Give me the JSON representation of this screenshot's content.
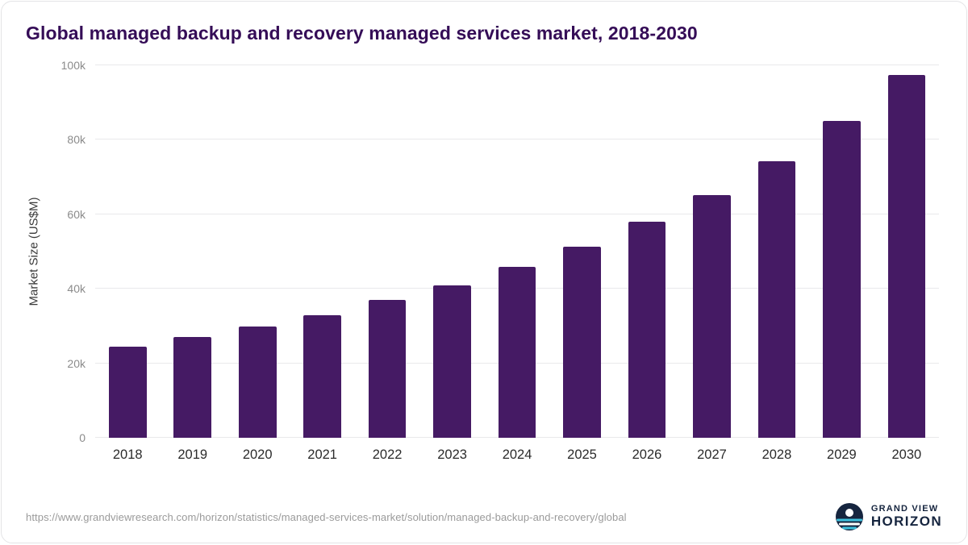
{
  "colors": {
    "bar": "#451a64",
    "title": "#350d57",
    "navy": "#16253f",
    "accent_teal": "#3fc0dc",
    "gridline": "#e9e9eb"
  },
  "chart_data": {
    "type": "bar",
    "title": "Global managed backup and recovery managed services market, 2018-2030",
    "xlabel": "",
    "ylabel": "Market Size (US$M)",
    "ylim": [
      0,
      100000
    ],
    "grid": "horizontal",
    "legend": "none",
    "categories": [
      "2018",
      "2019",
      "2020",
      "2021",
      "2022",
      "2023",
      "2024",
      "2025",
      "2026",
      "2027",
      "2028",
      "2029",
      "2030"
    ],
    "values": [
      24500,
      27000,
      29800,
      33000,
      37000,
      41000,
      45800,
      51400,
      58000,
      65200,
      74300,
      85000,
      97500
    ],
    "yticks": [
      {
        "value": 0,
        "label": "0"
      },
      {
        "value": 20000,
        "label": "20k"
      },
      {
        "value": 40000,
        "label": "40k"
      },
      {
        "value": 60000,
        "label": "60k"
      },
      {
        "value": 80000,
        "label": "80k"
      },
      {
        "value": 100000,
        "label": "100k"
      }
    ]
  },
  "footer": {
    "url": "https://www.grandviewresearch.com/horizon/statistics/managed-services-market/solution/managed-backup-and-recovery/global",
    "logo_line1": "GRAND VIEW",
    "logo_line2": "HORIZON"
  }
}
